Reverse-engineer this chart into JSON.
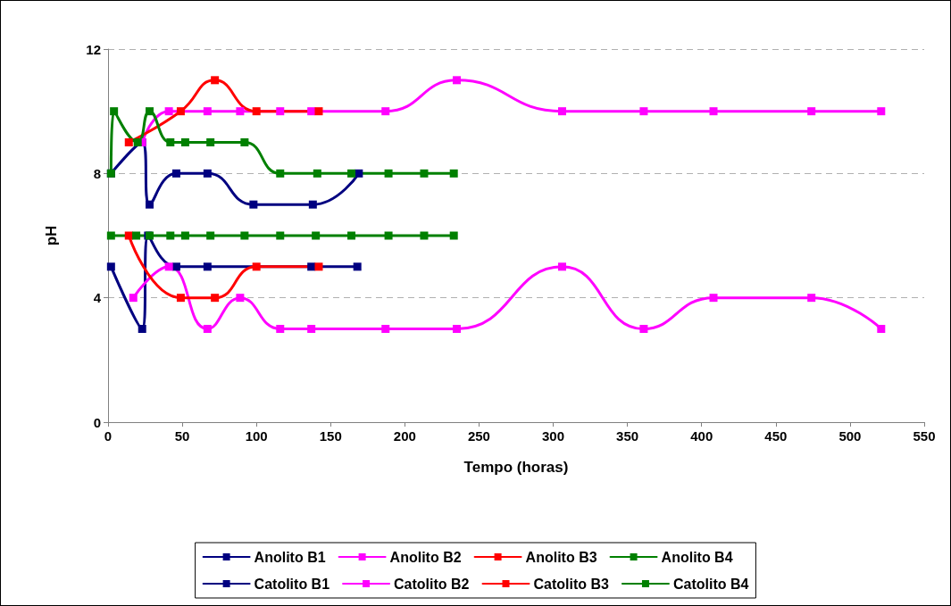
{
  "chart_data": {
    "type": "line",
    "xlabel": "Tempo (horas)",
    "ylabel": "pH",
    "xlim": [
      0,
      550
    ],
    "xticks": [
      0,
      50,
      100,
      150,
      200,
      250,
      300,
      350,
      400,
      450,
      500,
      550
    ],
    "ylim": [
      0,
      12
    ],
    "yticks": [
      0,
      4,
      8,
      12
    ],
    "grid": "y",
    "legend": "bottom",
    "marker": "square",
    "line_style": "solid",
    "series": [
      {
        "name": "Anolito B1",
        "color": "#000080",
        "x": [
          2,
          23,
          27,
          46,
          67,
          137,
          168
        ],
        "values": [
          5,
          3,
          6,
          5,
          5,
          5,
          5
        ]
      },
      {
        "name": "Anolito B2",
        "color": "#ff00ff",
        "x": [
          17,
          41,
          67,
          89,
          116,
          137,
          187,
          235,
          306,
          361,
          408,
          474,
          521
        ],
        "values": [
          4,
          5,
          3,
          4,
          3,
          3,
          3,
          3,
          5,
          3,
          4,
          4,
          3
        ]
      },
      {
        "name": "Anolito B3",
        "color": "#ff0000",
        "x": [
          14,
          49,
          72,
          100,
          142
        ],
        "values": [
          6,
          4,
          4,
          5,
          5
        ]
      },
      {
        "name": "Anolito B4",
        "color": "#008000",
        "x": [
          2,
          19,
          28,
          42,
          52,
          69,
          92,
          116,
          140,
          164,
          189,
          213,
          233
        ],
        "values": [
          6,
          6,
          6,
          6,
          6,
          6,
          6,
          6,
          6,
          6,
          6,
          6,
          6
        ]
      },
      {
        "name": "Catolito B1",
        "color": "#000080",
        "x": [
          2,
          23,
          28,
          46,
          67,
          98,
          138,
          169
        ],
        "values": [
          8,
          9,
          7,
          8,
          8,
          7,
          7,
          8
        ]
      },
      {
        "name": "Catolito B2",
        "color": "#ff00ff",
        "x": [
          23,
          41,
          67,
          89,
          116,
          137,
          187,
          235,
          306,
          361,
          408,
          474,
          521
        ],
        "values": [
          9,
          10,
          10,
          10,
          10,
          10,
          10,
          11,
          10,
          10,
          10,
          10,
          10
        ]
      },
      {
        "name": "Catolito B3",
        "color": "#ff0000",
        "x": [
          14,
          49,
          72,
          100,
          142
        ],
        "values": [
          9,
          10,
          11,
          10,
          10
        ]
      },
      {
        "name": "Catolito B4",
        "color": "#008000",
        "x": [
          2,
          4,
          20,
          28,
          42,
          52,
          69,
          92,
          116,
          141,
          164,
          189,
          213,
          233
        ],
        "values": [
          8,
          10,
          9,
          10,
          9,
          9,
          9,
          9,
          8,
          8,
          8,
          8,
          8,
          8
        ]
      }
    ]
  }
}
